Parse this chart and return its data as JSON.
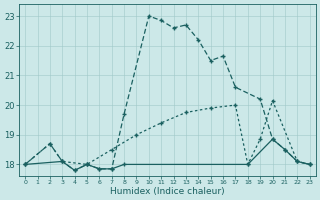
{
  "bg_color": "#cce8e8",
  "line_color": "#1a6060",
  "xlabel": "Humidex (Indice chaleur)",
  "xlim": [
    -0.5,
    23.5
  ],
  "ylim": [
    17.6,
    23.4
  ],
  "yticks": [
    18,
    19,
    20,
    21,
    22,
    23
  ],
  "xticks": [
    0,
    1,
    2,
    3,
    4,
    5,
    6,
    7,
    8,
    9,
    10,
    11,
    12,
    13,
    14,
    15,
    16,
    17,
    18,
    19,
    20,
    21,
    22,
    23
  ],
  "line_dashed_x": [
    0,
    2,
    3,
    4,
    5,
    6,
    7,
    8,
    10,
    11,
    12,
    13,
    14,
    15,
    16,
    17,
    19,
    20,
    21,
    22,
    23
  ],
  "line_dashed_y": [
    18.0,
    18.7,
    18.1,
    17.8,
    18.0,
    17.85,
    17.85,
    19.7,
    23.0,
    22.85,
    22.6,
    22.7,
    22.2,
    21.5,
    21.65,
    20.6,
    20.2,
    18.85,
    18.5,
    18.1,
    18.0
  ],
  "line_dotted_x": [
    0,
    2,
    3,
    5,
    7,
    9,
    11,
    13,
    15,
    17,
    18,
    19,
    20,
    22,
    23
  ],
  "line_dotted_y": [
    18.0,
    18.7,
    18.1,
    18.0,
    18.5,
    19.0,
    19.4,
    19.75,
    19.9,
    20.0,
    18.0,
    18.85,
    20.15,
    18.1,
    18.0
  ],
  "line_solid_x": [
    0,
    3,
    4,
    5,
    6,
    7,
    8,
    18,
    20,
    21,
    22,
    23
  ],
  "line_solid_y": [
    18.0,
    18.1,
    17.8,
    18.0,
    17.85,
    17.85,
    18.0,
    18.0,
    18.85,
    18.5,
    18.1,
    18.0
  ]
}
